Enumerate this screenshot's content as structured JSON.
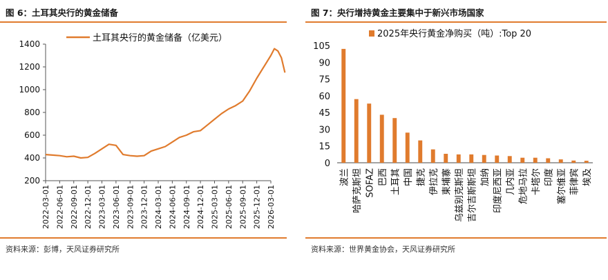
{
  "left": {
    "figure_title": "图 6：土耳其央行的黄金储备",
    "source": "资料来源：彭博，天风证券研究所",
    "chart_data": {
      "type": "line",
      "title": "土耳其央行的黄金储备",
      "legend": [
        "土耳其央行的黄金储备（亿美元）"
      ],
      "legend_position": "top-center",
      "ylim": [
        200,
        1400
      ],
      "yticks": [
        200,
        400,
        600,
        800,
        1000,
        1200,
        1400
      ],
      "xticks": [
        "2022-03-01",
        "2022-06-01",
        "2022-09-01",
        "2022-12-01",
        "2023-03-01",
        "2023-06-01",
        "2023-09-01",
        "2023-12-01",
        "2024-03-01",
        "2024-06-01",
        "2024-09-01",
        "2024-12-01",
        "2025-03-01",
        "2025-06-01",
        "2025-09-01",
        "2025-12-01",
        "2026-03-01"
      ],
      "series": [
        {
          "name": "土耳其央行的黄金储备（亿美元）",
          "color": "#e07b2d",
          "x": [
            0,
            0.5,
            1,
            1.5,
            2,
            2.5,
            3,
            3.5,
            4,
            4.5,
            5,
            5.5,
            6,
            6.5,
            7,
            7.5,
            8,
            8.5,
            9,
            9.5,
            10,
            10.5,
            11,
            11.5,
            12,
            12.5,
            13,
            13.5,
            14,
            14.5,
            15,
            15.5,
            16,
            16.25,
            16.5,
            16.75,
            17
          ],
          "values": [
            430,
            425,
            420,
            410,
            415,
            400,
            405,
            440,
            480,
            520,
            510,
            430,
            420,
            415,
            420,
            460,
            480,
            500,
            540,
            580,
            600,
            630,
            640,
            690,
            740,
            790,
            830,
            860,
            900,
            990,
            1100,
            1200,
            1300,
            1360,
            1340,
            1280,
            1150
          ]
        }
      ]
    }
  },
  "right": {
    "figure_title": "图 7：央行增持黄金主要集中于新兴市场国家",
    "source": "资料来源：世界黄金协会，天风证券研究所",
    "chart_data": {
      "type": "bar",
      "title": "2025年央行黄金净购买（吨）:Top 20",
      "legend": [
        "2025年央行黄金净购买（吨）:Top 20"
      ],
      "legend_position": "top-left",
      "ylim": [
        0,
        105
      ],
      "yticks": [
        0,
        15,
        30,
        45,
        60,
        75,
        90,
        105
      ],
      "categories": [
        "波兰",
        "哈萨克斯坦",
        "SOFAZ",
        "巴西",
        "土耳其",
        "中国",
        "捷克",
        "伊拉克",
        "柬埔寨",
        "乌兹别克斯坦",
        "吉尔吉斯斯坦",
        "加纳",
        "印度尼西亚",
        "几内亚",
        "危地马拉",
        "卡塔尔",
        "印度",
        "塞尔维亚",
        "菲律宾",
        "埃及"
      ],
      "values": [
        102,
        57,
        53,
        43,
        40,
        27,
        20,
        12,
        8,
        7.5,
        7.5,
        7,
        6.5,
        6,
        4.5,
        4.5,
        4,
        3,
        2,
        1.8
      ],
      "color": "#e07b2d"
    }
  }
}
